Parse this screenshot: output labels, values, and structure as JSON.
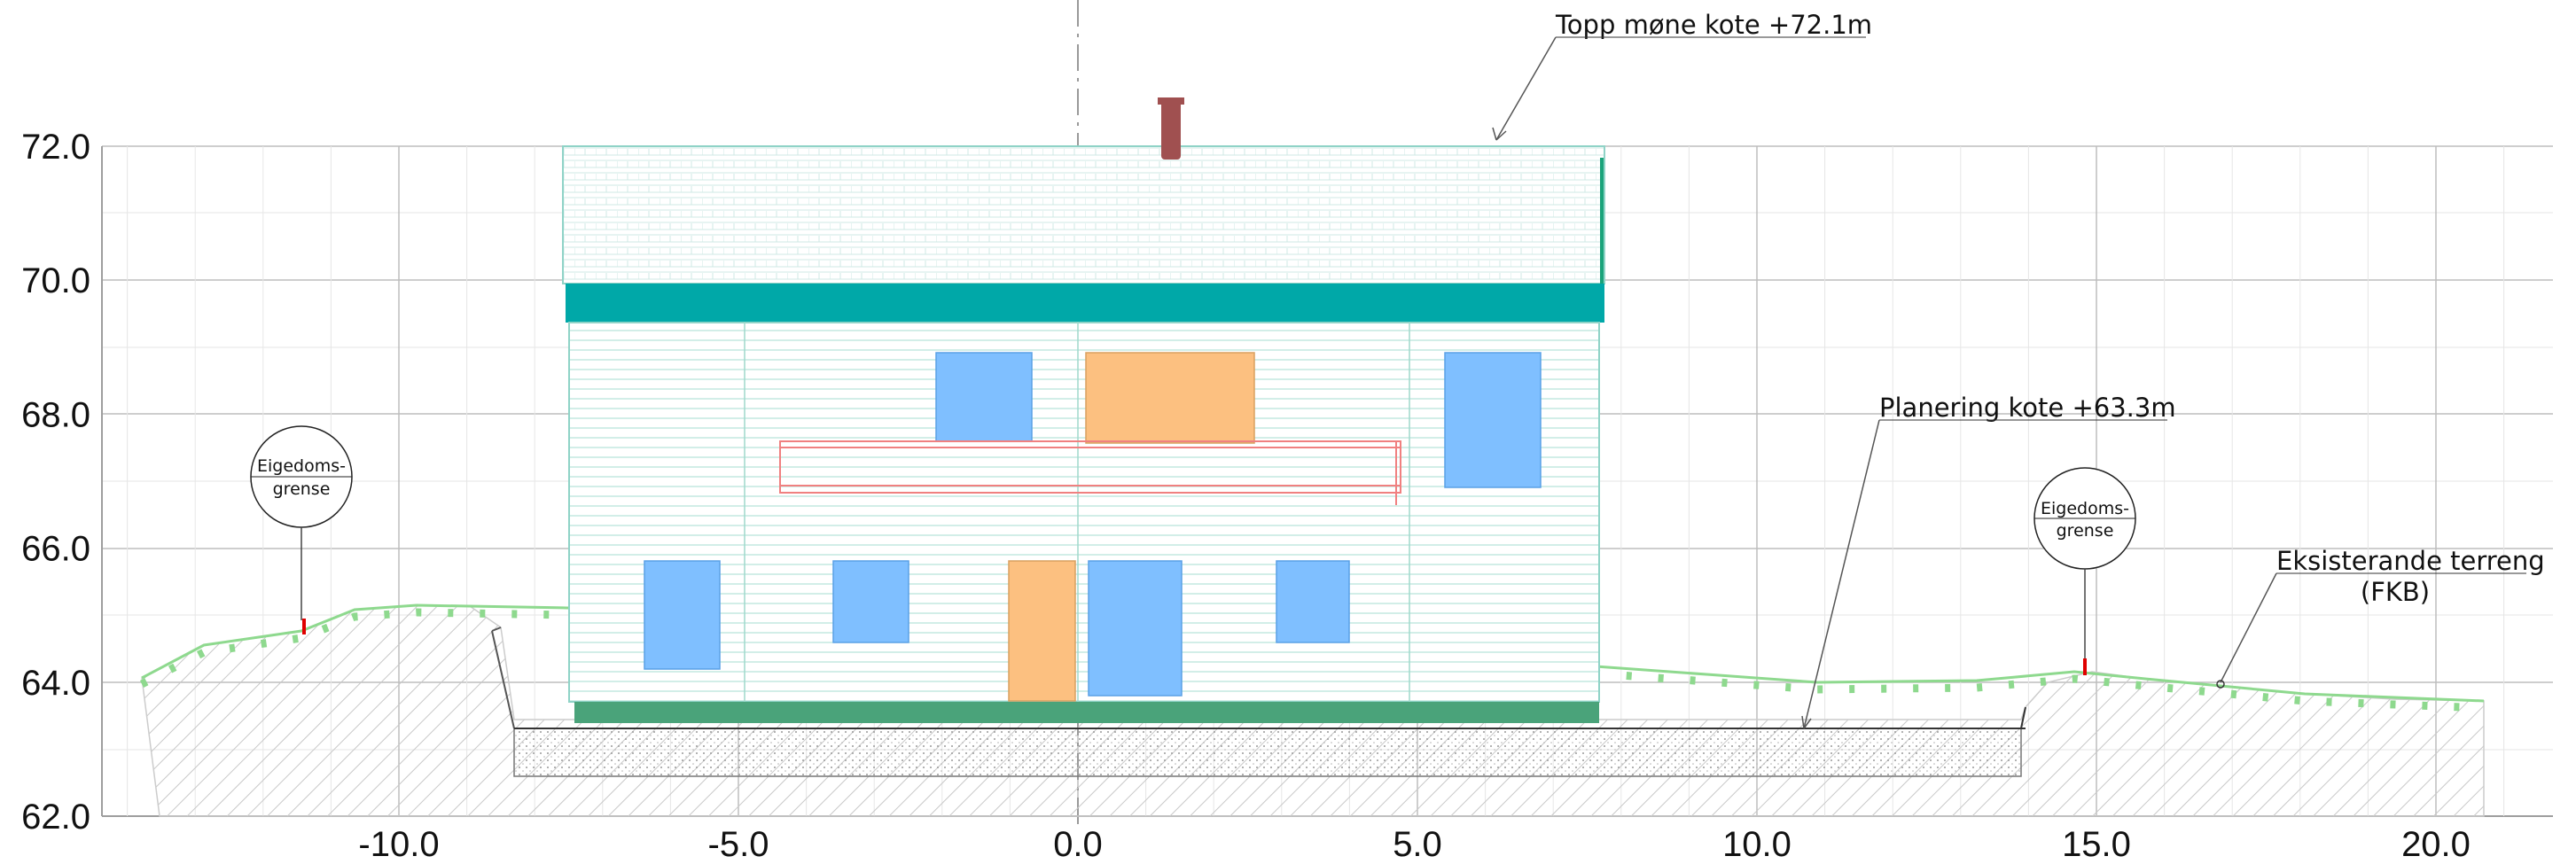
{
  "title": "",
  "x_ticks": [
    "-10.0",
    "-5.0",
    "0.0",
    "5.0",
    "10.0",
    "15.0",
    "20.0"
  ],
  "y_ticks": [
    "62.0",
    "64.0",
    "66.0",
    "68.0",
    "70.0",
    "72.0"
  ],
  "annotations": {
    "ridge": "Topp møne kote +72.1m",
    "grading": "Planering kote +63.3m",
    "terrain_line1": "Eksisterande terreng",
    "terrain_line2": "(FKB)"
  },
  "boundary_markers": [
    {
      "line1": "Eigedoms-",
      "line2": "grense",
      "x": -11.6
    },
    {
      "line1": "Eigedoms-",
      "line2": "grense",
      "x": 15.0
    }
  ],
  "colors": {
    "roof_band": "#00a8a8",
    "window": "#7fbfff",
    "door": "#fcc080",
    "chimney": "#a05050",
    "foundation": "#4aa37a",
    "balcony": "#f08080",
    "terrain_line": "#8ed98e",
    "cladding": "#9fd9cc"
  }
}
